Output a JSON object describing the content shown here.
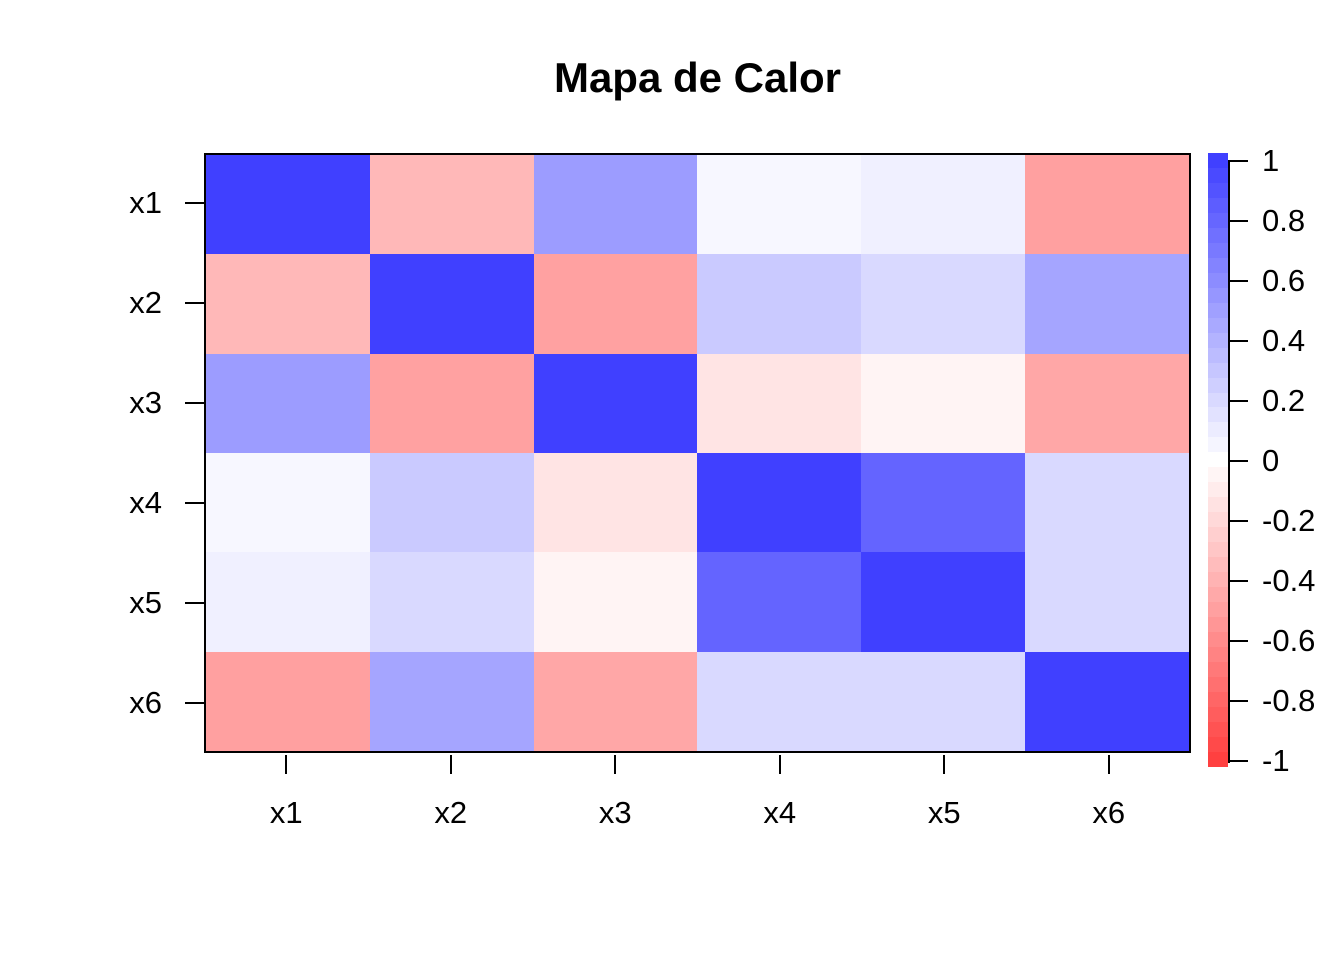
{
  "title": "Mapa de Calor",
  "chart_data": {
    "type": "heatmap",
    "title": "Mapa de Calor",
    "x_categories": [
      "x1",
      "x2",
      "x3",
      "x4",
      "x5",
      "x6"
    ],
    "y_categories": [
      "x1",
      "x2",
      "x3",
      "x4",
      "x5",
      "x6"
    ],
    "matrix_rows_top_to_bottom": [
      [
        1.0,
        -0.37,
        0.52,
        0.04,
        0.08,
        -0.5
      ],
      [
        -0.37,
        1.0,
        -0.49,
        0.28,
        0.2,
        0.47
      ],
      [
        0.52,
        -0.49,
        1.0,
        -0.14,
        -0.06,
        -0.46
      ],
      [
        0.04,
        0.28,
        -0.14,
        1.0,
        0.81,
        0.2
      ],
      [
        0.08,
        0.2,
        -0.06,
        0.81,
        1.0,
        0.2
      ],
      [
        -0.5,
        0.47,
        -0.46,
        0.2,
        0.2,
        1.0
      ]
    ],
    "zlim": [
      -1,
      1
    ],
    "colorbar_ticks": [
      1,
      0.8,
      0.6,
      0.4,
      0.2,
      0,
      -0.2,
      -0.4,
      -0.6,
      -0.8,
      -1
    ],
    "colorbar_tick_labels": [
      "1",
      "0.8",
      "0.6",
      "0.4",
      "0.2",
      "0",
      "-0.2",
      "-0.4",
      "-0.6",
      "-0.8",
      "-1"
    ],
    "palette": {
      "negative_end": "#FF4040",
      "midpoint": "#FFFFFF",
      "positive_end": "#4040FF"
    },
    "legend_position": "right",
    "grid": false,
    "axis_color": "#000000",
    "background_color": "#FFFFFF"
  }
}
